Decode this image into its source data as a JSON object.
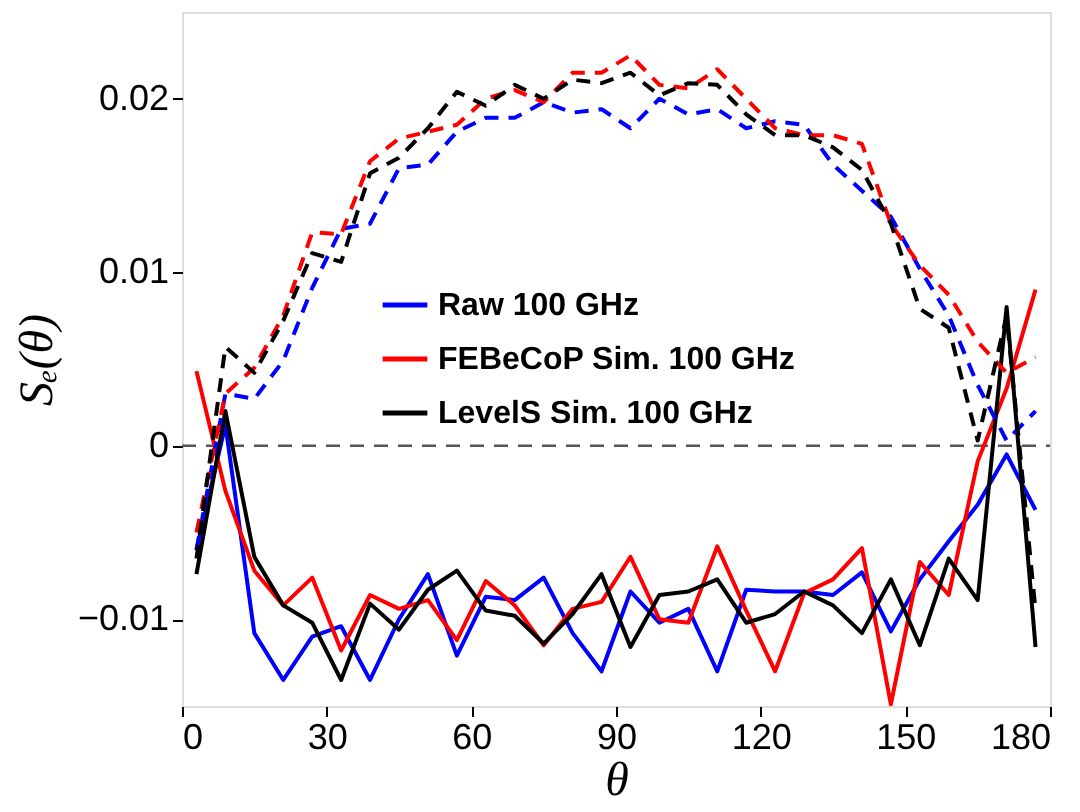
{
  "chart_data": {
    "type": "line",
    "xlabel": "θ",
    "ylabel": "Sₑ(θ)",
    "x": [
      3,
      9,
      15,
      21,
      27,
      33,
      39,
      45,
      51,
      57,
      63,
      69,
      75,
      81,
      87,
      93,
      99,
      105,
      111,
      117,
      123,
      129,
      135,
      141,
      147,
      153,
      159,
      165,
      171,
      177
    ],
    "xlim": [
      0,
      180
    ],
    "xticks": [
      0,
      30,
      60,
      90,
      120,
      150,
      180
    ],
    "ylim": [
      -0.015,
      0.025
    ],
    "yticks": [
      {
        "value": -0.01,
        "label": "−0.01"
      },
      0,
      0.01,
      0.02
    ],
    "grid": false,
    "legend": "left",
    "marker": "none",
    "ref_lines": [
      {
        "axis": "y",
        "value": 0,
        "color": "#555555",
        "line_style": "dashed"
      }
    ],
    "series": [
      {
        "name": "Raw 100 GHz",
        "color": "#0000ff",
        "line_style": "solid",
        "values": [
          -0.006,
          0.0012,
          -0.0108,
          -0.0135,
          -0.011,
          -0.0104,
          -0.0135,
          -0.01,
          -0.0074,
          -0.0121,
          -0.0087,
          -0.0089,
          -0.0076,
          -0.0108,
          -0.013,
          -0.0084,
          -0.0102,
          -0.0094,
          -0.013,
          -0.0083,
          -0.0084,
          -0.0084,
          -0.0086,
          -0.0073,
          -0.0107,
          -0.0077,
          -0.0055,
          -0.0034,
          -0.0005,
          -0.0037
        ]
      },
      {
        "name": "FEBeCoP Sim. 100 GHz",
        "color": "#ff0000",
        "line_style": "solid",
        "values": [
          0.0043,
          -0.0026,
          -0.0072,
          -0.0092,
          -0.0076,
          -0.0118,
          -0.0086,
          -0.0094,
          -0.0089,
          -0.0112,
          -0.0078,
          -0.0092,
          -0.0115,
          -0.0094,
          -0.009,
          -0.0064,
          -0.01,
          -0.0102,
          -0.0058,
          -0.0095,
          -0.013,
          -0.0085,
          -0.0077,
          -0.0059,
          -0.0149,
          -0.0067,
          -0.0086,
          -0.0009,
          0.0033,
          0.009
        ]
      },
      {
        "name": "LevelS Sim. 100 GHz",
        "color": "#000000",
        "line_style": "solid",
        "values": [
          -0.0074,
          0.002,
          -0.0064,
          -0.0092,
          -0.0102,
          -0.0135,
          -0.0091,
          -0.0106,
          -0.0083,
          -0.0072,
          -0.0095,
          -0.0098,
          -0.0114,
          -0.0097,
          -0.0074,
          -0.0116,
          -0.0086,
          -0.0084,
          -0.0077,
          -0.0102,
          -0.0097,
          -0.0084,
          -0.0092,
          -0.0108,
          -0.0077,
          -0.0115,
          -0.0065,
          -0.0089,
          0.008,
          -0.0116
        ]
      },
      {
        "color": "#0000ff",
        "line_style": "dashed",
        "values": [
          -0.006,
          0.003,
          0.0027,
          0.0049,
          0.0091,
          0.0125,
          0.0128,
          0.016,
          0.0162,
          0.0181,
          0.0189,
          0.0189,
          0.0198,
          0.0192,
          0.0194,
          0.0183,
          0.02,
          0.0191,
          0.0194,
          0.0183,
          0.0187,
          0.0185,
          0.0162,
          0.0147,
          0.0132,
          0.0102,
          0.0075,
          0.0035,
          0.0003,
          0.002
        ]
      },
      {
        "color": "#ff0000",
        "line_style": "dashed",
        "values": [
          -0.005,
          0.003,
          0.0045,
          0.0075,
          0.0123,
          0.0122,
          0.0164,
          0.0177,
          0.0181,
          0.0185,
          0.02,
          0.0205,
          0.0198,
          0.0215,
          0.0215,
          0.0225,
          0.0208,
          0.0206,
          0.0217,
          0.02,
          0.0183,
          0.0179,
          0.0179,
          0.0174,
          0.0128,
          0.0104,
          0.0087,
          0.006,
          0.0042,
          0.0051
        ]
      },
      {
        "color": "#000000",
        "line_style": "dashed",
        "values": [
          -0.0065,
          0.0057,
          0.0042,
          0.0072,
          0.0111,
          0.0106,
          0.0157,
          0.0166,
          0.0183,
          0.0204,
          0.0196,
          0.0208,
          0.02,
          0.0211,
          0.0209,
          0.0215,
          0.0202,
          0.0209,
          0.0208,
          0.0191,
          0.0179,
          0.0179,
          0.0172,
          0.0159,
          0.0128,
          0.0079,
          0.0068,
          0.0003,
          0.0075,
          -0.0095
        ]
      }
    ]
  }
}
